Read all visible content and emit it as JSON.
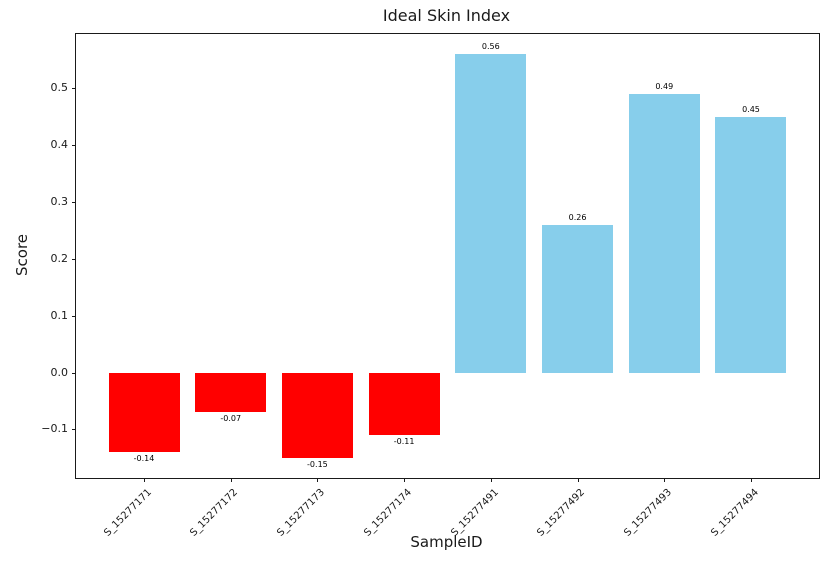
{
  "chart": {
    "title": "Ideal Skin Index",
    "xlabel": "SampleID",
    "ylabel": "Score"
  },
  "chart_data": {
    "type": "bar",
    "title": "Ideal Skin Index",
    "xlabel": "SampleID",
    "ylabel": "Score",
    "categories": [
      "S_15277171",
      "S_15277172",
      "S_15277173",
      "S_15277174",
      "S_15277491",
      "S_15277492",
      "S_15277493",
      "S_15277494"
    ],
    "values": [
      -0.14,
      -0.07,
      -0.15,
      -0.11,
      0.56,
      0.26,
      0.49,
      0.45
    ],
    "bar_labels": [
      "-0.14",
      "-0.07",
      "-0.15",
      "-0.11",
      "0.56",
      "0.26",
      "0.49",
      "0.45"
    ],
    "positive_color": "#87ceeb",
    "negative_color": "#ff0000",
    "ylim": [
      -0.1855,
      0.5955
    ],
    "yticks": [
      -0.1,
      0.0,
      0.1,
      0.2,
      0.3,
      0.4,
      0.5
    ],
    "ytick_labels": [
      "−0.1",
      "0.0",
      "0.1",
      "0.2",
      "0.3",
      "0.4",
      "0.5"
    ],
    "grid": false,
    "legend": null,
    "x_tick_rotation_deg": 45,
    "value_label_position": "outside-end"
  }
}
